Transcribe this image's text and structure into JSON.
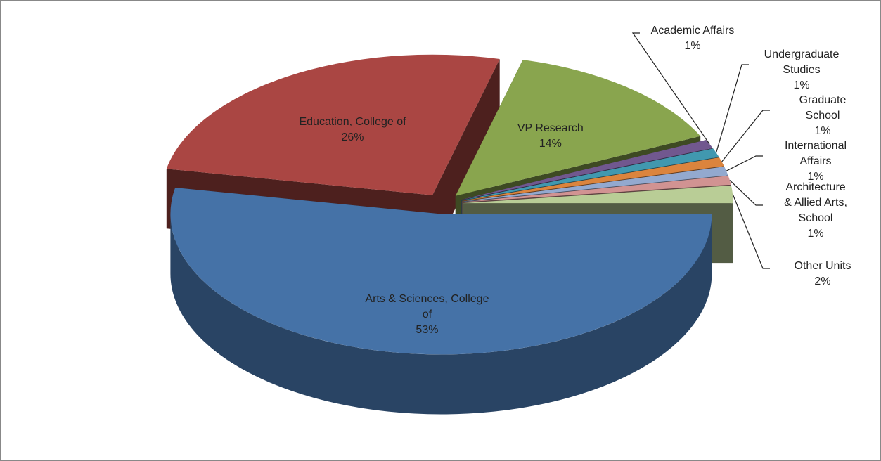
{
  "chart_data": {
    "type": "pie",
    "categories": [
      "Arts & Sciences, College of",
      "Education, College of",
      "VP Research",
      "Academic Affairs",
      "Undergraduate Studies",
      "Graduate School",
      "International Affairs",
      "Architecture & Allied Arts, School",
      "Other Units"
    ],
    "values": [
      53,
      26,
      14,
      1,
      1,
      1,
      1,
      1,
      2
    ],
    "value_labels": [
      "53%",
      "26%",
      "14%",
      "1%",
      "1%",
      "1%",
      "1%",
      "1%",
      "2%"
    ],
    "colors": [
      "#4572a7",
      "#aa4643",
      "#89a54e",
      "#71588f",
      "#4198af",
      "#db843d",
      "#93a9cf",
      "#d19392",
      "#b9cd96"
    ]
  }
}
